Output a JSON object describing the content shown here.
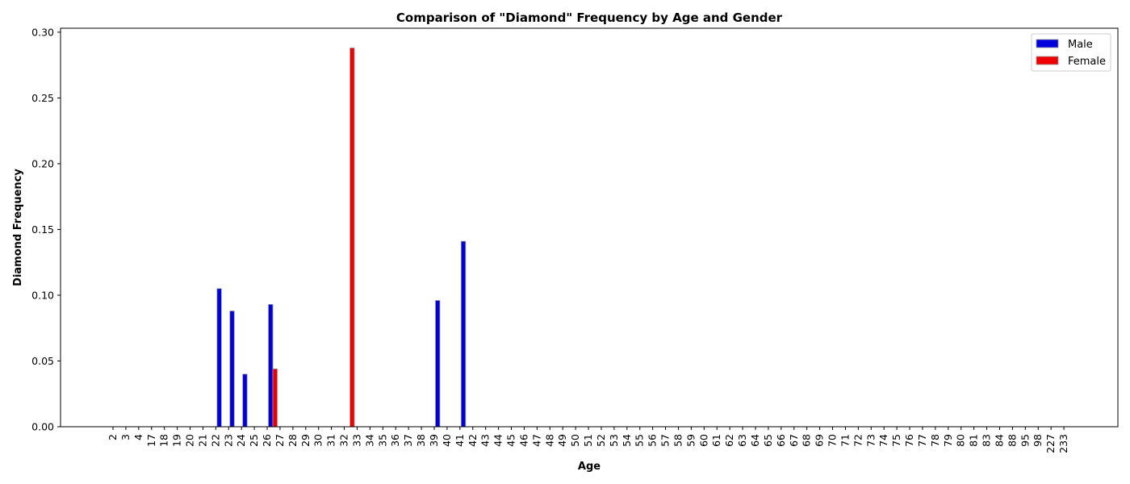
{
  "chart_data": {
    "type": "bar",
    "title": "Comparison of \"Diamond\" Frequency by Age and Gender",
    "xlabel": "Age",
    "ylabel": "Diamond Frequency",
    "ylim": [
      0,
      0.303
    ],
    "yticks": [
      "0.00",
      "0.05",
      "0.10",
      "0.15",
      "0.20",
      "0.25",
      "0.30"
    ],
    "categories": [
      "2",
      "3",
      "4",
      "17",
      "18",
      "19",
      "20",
      "21",
      "22",
      "23",
      "24",
      "25",
      "26",
      "27",
      "28",
      "29",
      "30",
      "31",
      "32",
      "33",
      "34",
      "35",
      "36",
      "37",
      "38",
      "39",
      "40",
      "41",
      "42",
      "43",
      "44",
      "45",
      "46",
      "47",
      "48",
      "49",
      "50",
      "51",
      "52",
      "53",
      "54",
      "55",
      "56",
      "57",
      "58",
      "59",
      "60",
      "61",
      "62",
      "63",
      "64",
      "65",
      "66",
      "67",
      "68",
      "69",
      "70",
      "71",
      "72",
      "73",
      "74",
      "75",
      "76",
      "77",
      "78",
      "79",
      "80",
      "81",
      "83",
      "84",
      "88",
      "95",
      "98",
      "227",
      "233"
    ],
    "series": [
      {
        "name": "Male",
        "color": "#0000dd",
        "values": {
          "22": 0.105,
          "23": 0.088,
          "24": 0.04,
          "26": 0.093,
          "39": 0.096,
          "41": 0.141
        }
      },
      {
        "name": "Female",
        "color": "#ee0000",
        "values": {
          "26": 0.044,
          "32": 0.288
        }
      }
    ],
    "legend": "top-right",
    "grid": false
  }
}
